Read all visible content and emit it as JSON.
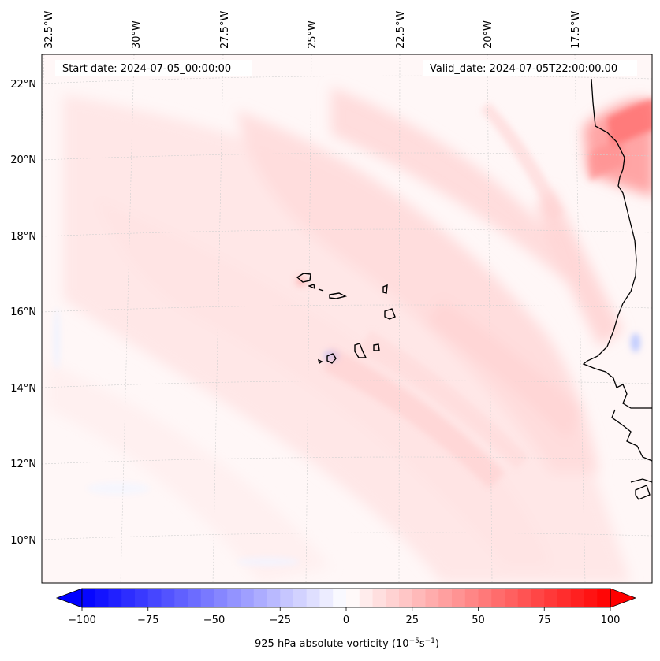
{
  "map": {
    "start_date_label": "Start date: 2024-07-05_00:00:00",
    "valid_date_label": "Valid_date: 2024-07-05T22:00:00.00",
    "field": "925 hPa absolute vorticity",
    "lon_ticks": [
      "32.5°W",
      "30°W",
      "27.5°W",
      "25°W",
      "22.5°W",
      "20°W",
      "17.5°W"
    ],
    "lat_ticks": [
      "22°N",
      "20°N",
      "18°N",
      "16°N",
      "14°N",
      "12°N",
      "10°N"
    ],
    "colors": {
      "neg_strong": "#0000ff",
      "neutral": "#ffffff",
      "pos_strong": "#ff0000",
      "background_tint": "#fff6f6",
      "coastline": "#000000",
      "gridline": "#cfcfcf"
    }
  },
  "colorbar": {
    "label_main": "925 hPa absolute vorticity (10",
    "label_exp1": "−5",
    "label_mid": "s",
    "label_exp2": "−1",
    "label_end": ")",
    "min": -100,
    "max": 100,
    "ticks": [
      "−100",
      "−75",
      "−50",
      "−25",
      "0",
      "25",
      "50",
      "75",
      "100"
    ],
    "tick_values": [
      -100,
      -75,
      -50,
      -25,
      0,
      25,
      50,
      75,
      100
    ],
    "extend": "both"
  }
}
